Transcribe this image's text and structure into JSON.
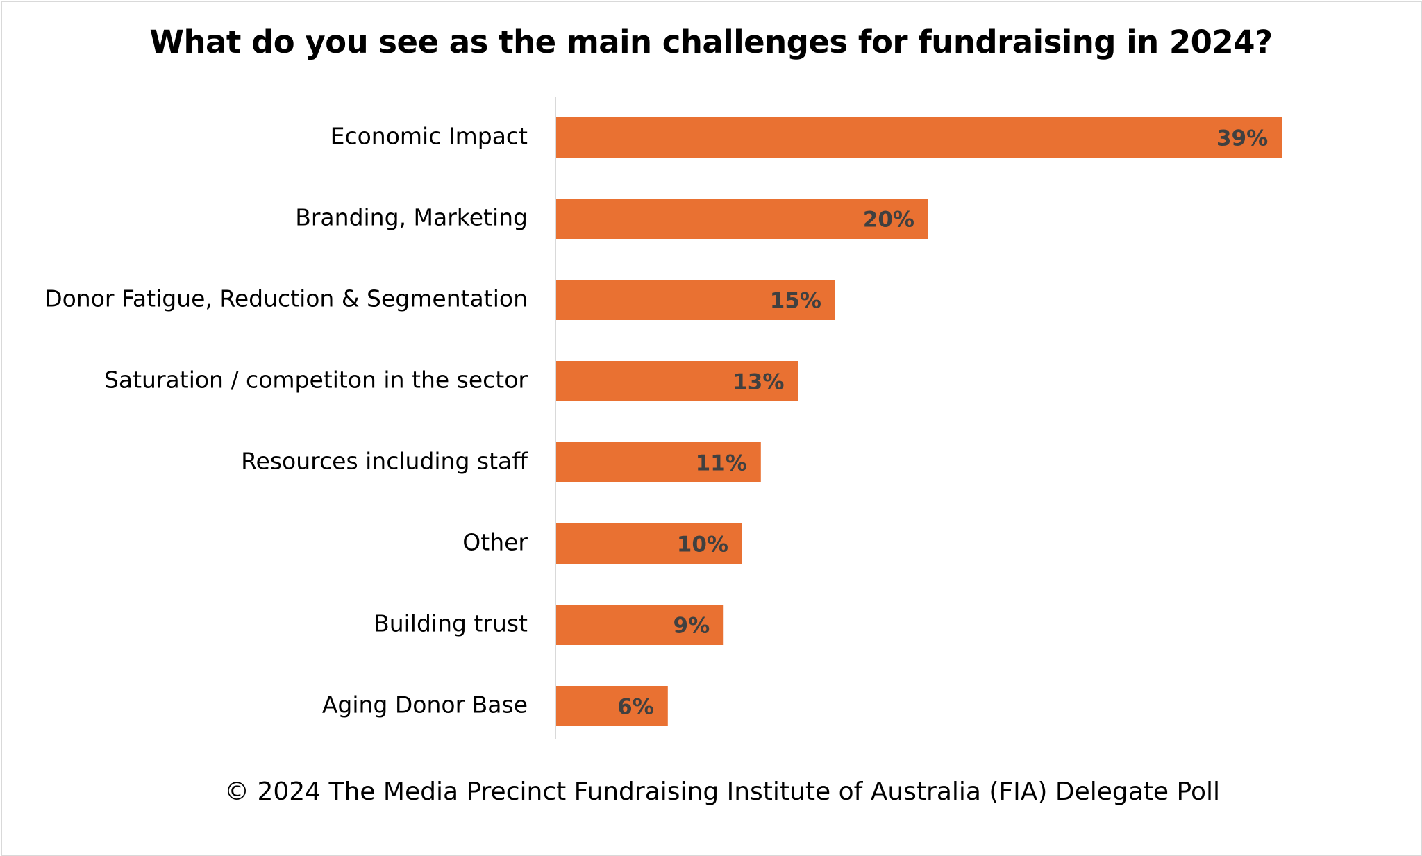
{
  "chart_data": {
    "type": "bar",
    "orientation": "horizontal",
    "title": "What do you see as the main challenges for fundraising in 2024?",
    "categories": [
      "Economic Impact",
      "Branding, Marketing",
      "Donor Fatigue, Reduction & Segmentation",
      "Saturation / competiton in the sector",
      "Resources including staff",
      "Other",
      "Building trust",
      "Aging Donor Base"
    ],
    "values": [
      39,
      20,
      15,
      13,
      11,
      10,
      9,
      6
    ],
    "value_labels": [
      "39%",
      "20%",
      "15%",
      "13%",
      "11%",
      "10%",
      "9%",
      "6%"
    ],
    "unit": "%",
    "bar_color": "#E97132",
    "label_color": "#404040",
    "grid": false,
    "legend": "none"
  },
  "footer": {
    "source": "© 2024 The Media Precinct Fundraising Institute of Australia (FIA) Delegate Poll"
  }
}
